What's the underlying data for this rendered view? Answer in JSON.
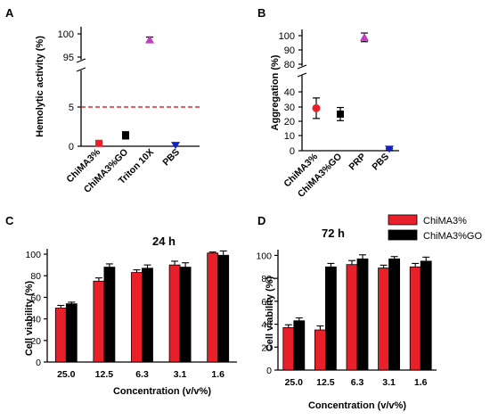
{
  "chart_data": [
    {
      "panel_letter": "A",
      "type": "scatter",
      "ylabel": "Hemolytic activity (%)",
      "y_ticks_lower": [
        "0",
        "5"
      ],
      "y_ticks_upper": [
        "95",
        "100"
      ],
      "y_segments": [
        [
          0,
          6.5
        ],
        [
          95,
          100.5
        ]
      ],
      "threshold": 5,
      "threshold_color": "#e8202a",
      "categories": [
        "ChiMA3%",
        "ChiMA3%GO",
        "Triton 10X",
        "PBS"
      ],
      "points": [
        {
          "x": "ChiMA3%",
          "y": 0.4,
          "err": 0.2,
          "color": "#e8202a",
          "marker": "square"
        },
        {
          "x": "ChiMA3%GO",
          "y": 1.5,
          "err": 0.5,
          "color": "#000000",
          "marker": "square"
        },
        {
          "x": "Triton 10X",
          "y": 98.8,
          "err": 0.6,
          "color": "#c040c0",
          "marker": "triangle-up"
        },
        {
          "x": "PBS",
          "y": 0.1,
          "err": 0.1,
          "color": "#1020d0",
          "marker": "triangle-down"
        }
      ]
    },
    {
      "panel_letter": "B",
      "type": "scatter",
      "ylabel": "Aggregation (%)",
      "y_ticks_lower": [
        "0",
        "10",
        "20",
        "30",
        "40"
      ],
      "y_ticks_upper": [
        "80",
        "90",
        "100"
      ],
      "y_segments": [
        [
          0,
          42
        ],
        [
          78,
          104
        ]
      ],
      "categories": [
        "ChiMA3%",
        "ChiMA3%GO",
        "PRP",
        "PBS"
      ],
      "points": [
        {
          "x": "ChiMA3%",
          "y": 29,
          "err": 7,
          "color": "#e8202a",
          "marker": "circle"
        },
        {
          "x": "ChiMA3%GO",
          "y": 25,
          "err": 4.5,
          "color": "#000000",
          "marker": "square"
        },
        {
          "x": "PRP",
          "y": 98.5,
          "err": 3,
          "color": "#c040c0",
          "marker": "triangle-up"
        },
        {
          "x": "PBS",
          "y": 1,
          "err": 0.5,
          "color": "#1020d0",
          "marker": "triangle-down"
        }
      ]
    },
    {
      "panel_letter": "C",
      "type": "bar",
      "title": "24 h",
      "xlabel": "Concentration (v/v%)",
      "ylabel": "Cell viability (%)",
      "ylim": [
        0,
        105
      ],
      "y_ticks": [
        0,
        20,
        40,
        60,
        80,
        100
      ],
      "categories": [
        "25.0",
        "12.5",
        "6.3",
        "3.1",
        "1.6"
      ],
      "series": [
        {
          "name": "ChiMA3%",
          "color": "#e8202a",
          "values": [
            50,
            75,
            83,
            90,
            101
          ],
          "errors": [
            2.5,
            3,
            2.5,
            3.5,
            1
          ]
        },
        {
          "name": "ChiMA3%GO",
          "color": "#000000",
          "values": [
            54,
            88,
            87,
            88,
            99
          ],
          "errors": [
            1.5,
            3,
            3,
            4,
            4
          ]
        }
      ]
    },
    {
      "panel_letter": "D",
      "type": "bar",
      "title": "72 h",
      "xlabel": "Concentration (v/v%)",
      "ylabel": "Cell viability (%)",
      "ylim": [
        0,
        105
      ],
      "y_ticks": [
        0,
        20,
        40,
        60,
        80,
        100
      ],
      "categories": [
        "25.0",
        "12.5",
        "6.3",
        "3.1",
        "1.6"
      ],
      "series": [
        {
          "name": "ChiMA3%",
          "color": "#e8202a",
          "values": [
            37,
            35,
            92,
            89,
            90
          ],
          "errors": [
            2.5,
            3.5,
            3.5,
            2.5,
            3
          ]
        },
        {
          "name": "ChiMA3%GO",
          "color": "#000000",
          "values": [
            43,
            90,
            97,
            97,
            95
          ],
          "errors": [
            2.5,
            3,
            3.5,
            2,
            3.5
          ]
        }
      ]
    }
  ]
}
